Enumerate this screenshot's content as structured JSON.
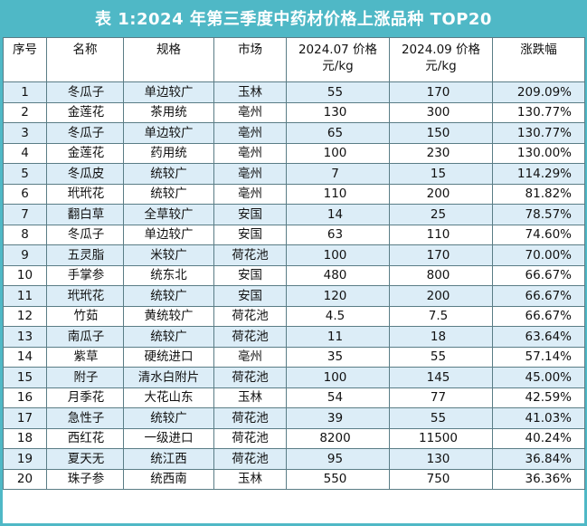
{
  "title": "表 1:2024 年第三季度中药材价格上涨品种 TOP20",
  "headers": {
    "index": "序号",
    "name": "名称",
    "spec": "规格",
    "market": "市场",
    "price_jul_line1": "2024.07 价格",
    "price_jul_line2": "元/kg",
    "price_sep_line1": "2024.09 价格",
    "price_sep_line2": "元/kg",
    "change": "涨跌幅"
  },
  "rows": [
    {
      "index": "1",
      "name": "冬瓜子",
      "spec": "单边较广",
      "market": "玉林",
      "jul": "55",
      "sep": "170",
      "change": "209.09%"
    },
    {
      "index": "2",
      "name": "金莲花",
      "spec": "茶用统",
      "market": "亳州",
      "jul": "130",
      "sep": "300",
      "change": "130.77%"
    },
    {
      "index": "3",
      "name": "冬瓜子",
      "spec": "单边较广",
      "market": "亳州",
      "jul": "65",
      "sep": "150",
      "change": "130.77%"
    },
    {
      "index": "4",
      "name": "金莲花",
      "spec": "药用统",
      "market": "亳州",
      "jul": "100",
      "sep": "230",
      "change": "130.00%"
    },
    {
      "index": "5",
      "name": "冬瓜皮",
      "spec": "统较广",
      "market": "亳州",
      "jul": "7",
      "sep": "15",
      "change": "114.29%"
    },
    {
      "index": "6",
      "name": "玳玳花",
      "spec": "统较广",
      "market": "亳州",
      "jul": "110",
      "sep": "200",
      "change": "81.82%"
    },
    {
      "index": "7",
      "name": "翻白草",
      "spec": "全草较广",
      "market": "安国",
      "jul": "14",
      "sep": "25",
      "change": "78.57%"
    },
    {
      "index": "8",
      "name": "冬瓜子",
      "spec": "单边较广",
      "market": "安国",
      "jul": "63",
      "sep": "110",
      "change": "74.60%"
    },
    {
      "index": "9",
      "name": "五灵脂",
      "spec": "米较广",
      "market": "荷花池",
      "jul": "100",
      "sep": "170",
      "change": "70.00%"
    },
    {
      "index": "10",
      "name": "手掌参",
      "spec": "统东北",
      "market": "安国",
      "jul": "480",
      "sep": "800",
      "change": "66.67%"
    },
    {
      "index": "11",
      "name": "玳玳花",
      "spec": "统较广",
      "market": "安国",
      "jul": "120",
      "sep": "200",
      "change": "66.67%"
    },
    {
      "index": "12",
      "name": "竹茹",
      "spec": "黄统较广",
      "market": "荷花池",
      "jul": "4.5",
      "sep": "7.5",
      "change": "66.67%"
    },
    {
      "index": "13",
      "name": "南瓜子",
      "spec": "统较广",
      "market": "荷花池",
      "jul": "11",
      "sep": "18",
      "change": "63.64%"
    },
    {
      "index": "14",
      "name": "紫草",
      "spec": "硬统进口",
      "market": "亳州",
      "jul": "35",
      "sep": "55",
      "change": "57.14%"
    },
    {
      "index": "15",
      "name": "附子",
      "spec": "清水白附片",
      "market": "荷花池",
      "jul": "100",
      "sep": "145",
      "change": "45.00%"
    },
    {
      "index": "16",
      "name": "月季花",
      "spec": "大花山东",
      "market": "玉林",
      "jul": "54",
      "sep": "77",
      "change": "42.59%"
    },
    {
      "index": "17",
      "name": "急性子",
      "spec": "统较广",
      "market": "荷花池",
      "jul": "39",
      "sep": "55",
      "change": "41.03%"
    },
    {
      "index": "18",
      "name": "西红花",
      "spec": "一级进口",
      "market": "荷花池",
      "jul": "8200",
      "sep": "11500",
      "change": "40.24%"
    },
    {
      "index": "19",
      "name": "夏天无",
      "spec": "统江西",
      "market": "荷花池",
      "jul": "95",
      "sep": "130",
      "change": "36.84%"
    },
    {
      "index": "20",
      "name": "珠子参",
      "spec": "统西南",
      "market": "玉林",
      "jul": "550",
      "sep": "750",
      "change": "36.36%"
    }
  ],
  "colors": {
    "accent": "#4fb8c6",
    "row_alt": "#dcedf7",
    "grid": "#5a7d86"
  }
}
